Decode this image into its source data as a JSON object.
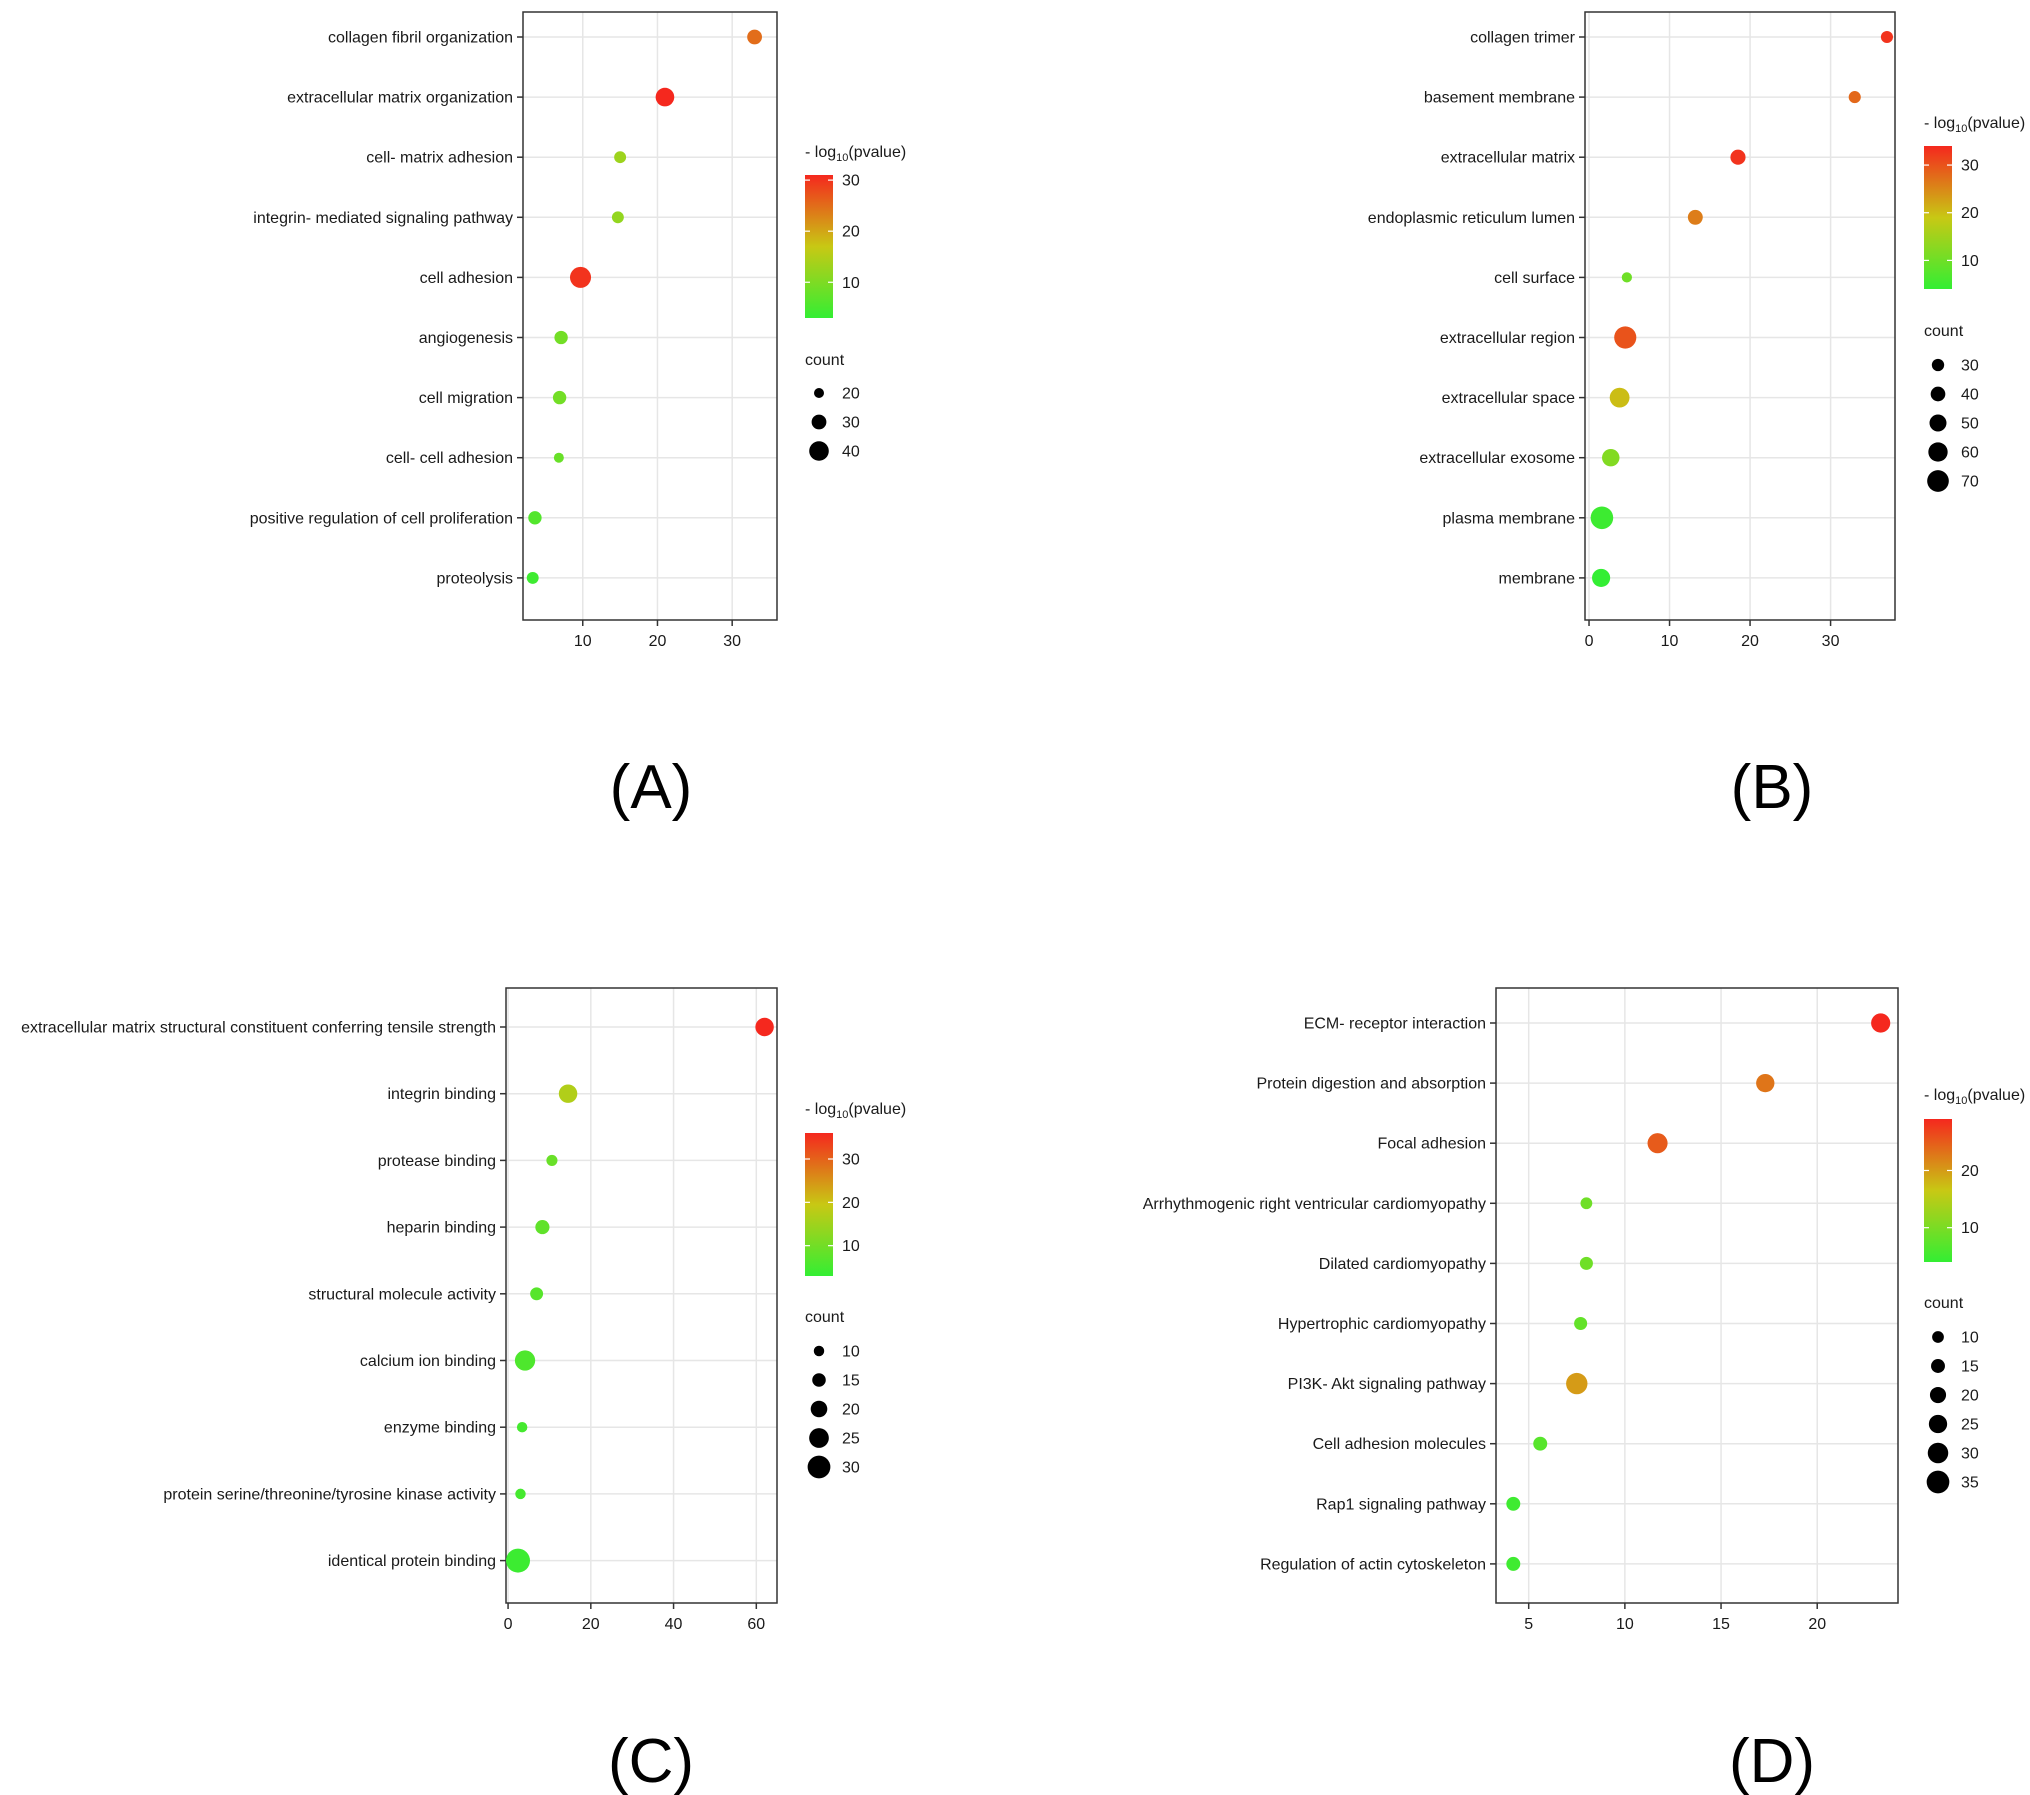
{
  "figure": {
    "legend_color_title_prefix": "- log",
    "legend_color_title_sub": "10",
    "legend_color_title_suffix": "(pvalue)",
    "legend_size_title": "count",
    "colors": {
      "low": "#33ee33",
      "mid": "#c8c814",
      "high": "#f5281e",
      "grid": "#e6e6e6"
    }
  },
  "chart_data": [
    {
      "type": "scatter",
      "panel_label": "(A)",
      "title": "",
      "xlabel": "",
      "ylabel": "",
      "xlim": [
        2,
        36
      ],
      "xticks": [
        10,
        20,
        30
      ],
      "color_range": [
        3,
        31
      ],
      "color_ticks": [
        10,
        20,
        30
      ],
      "size_legend": [
        20,
        30,
        40
      ],
      "size_domain": [
        20,
        45
      ],
      "points": [
        {
          "term": "collagen fibril organization",
          "x": 33,
          "count": 30,
          "logp": 25
        },
        {
          "term": "extracellular matrix organization",
          "x": 21,
          "count": 38,
          "logp": 31
        },
        {
          "term": "cell- matrix adhesion",
          "x": 15,
          "count": 24,
          "logp": 13
        },
        {
          "term": "integrin- mediated signaling pathway",
          "x": 14.7,
          "count": 24,
          "logp": 12
        },
        {
          "term": "cell adhesion",
          "x": 9.7,
          "count": 43,
          "logp": 30
        },
        {
          "term": "angiogenesis",
          "x": 7.1,
          "count": 27,
          "logp": 9
        },
        {
          "term": "cell migration",
          "x": 6.9,
          "count": 27,
          "logp": 9
        },
        {
          "term": "cell- cell adhesion",
          "x": 6.8,
          "count": 19,
          "logp": 8
        },
        {
          "term": "positive regulation of cell proliferation",
          "x": 3.6,
          "count": 27,
          "logp": 6
        },
        {
          "term": "proteolysis",
          "x": 3.3,
          "count": 24,
          "logp": 4
        }
      ]
    },
    {
      "type": "scatter",
      "panel_label": "(B)",
      "title": "",
      "xlabel": "",
      "ylabel": "",
      "xlim": [
        -0.5,
        38
      ],
      "xticks": [
        0,
        10,
        20,
        30
      ],
      "color_range": [
        4,
        34
      ],
      "color_ticks": [
        10,
        20,
        30
      ],
      "size_legend": [
        30,
        40,
        50,
        60,
        70
      ],
      "size_domain": [
        20,
        80
      ],
      "points": [
        {
          "term": "collagen trimer",
          "x": 37,
          "count": 29,
          "logp": 33
        },
        {
          "term": "basement membrane",
          "x": 33,
          "count": 29,
          "logp": 28
        },
        {
          "term": "extracellular matrix",
          "x": 18.5,
          "count": 42,
          "logp": 33
        },
        {
          "term": "endoplasmic reticulum lumen",
          "x": 13.2,
          "count": 41,
          "logp": 26
        },
        {
          "term": "cell surface",
          "x": 4.7,
          "count": 21,
          "logp": 10
        },
        {
          "term": "extracellular region",
          "x": 4.5,
          "count": 72,
          "logp": 30
        },
        {
          "term": "extracellular space",
          "x": 3.8,
          "count": 62,
          "logp": 20
        },
        {
          "term": "extracellular exosome",
          "x": 2.7,
          "count": 52,
          "logp": 12
        },
        {
          "term": "plasma membrane",
          "x": 1.6,
          "count": 74,
          "logp": 5
        },
        {
          "term": "membrane",
          "x": 1.5,
          "count": 55,
          "logp": 4
        }
      ]
    },
    {
      "type": "scatter",
      "panel_label": "(C)",
      "title": "",
      "xlabel": "",
      "ylabel": "",
      "xlim": [
        -0.5,
        65
      ],
      "xticks": [
        0,
        20,
        40,
        60
      ],
      "color_range": [
        3,
        36
      ],
      "color_ticks": [
        10,
        20,
        30
      ],
      "size_legend": [
        10,
        15,
        20,
        25,
        30
      ],
      "size_domain": [
        6,
        32
      ],
      "points": [
        {
          "term": "extracellular matrix structural constituent conferring tensile strength",
          "x": 62,
          "count": 23,
          "logp": 36
        },
        {
          "term": "integrin binding",
          "x": 14.5,
          "count": 23,
          "logp": 17
        },
        {
          "term": "protease binding",
          "x": 10.6,
          "count": 11,
          "logp": 9
        },
        {
          "term": "heparin binding",
          "x": 8.3,
          "count": 16,
          "logp": 8
        },
        {
          "term": "structural molecule activity",
          "x": 6.9,
          "count": 14,
          "logp": 7
        },
        {
          "term": "calcium ion binding",
          "x": 4.1,
          "count": 26,
          "logp": 6
        },
        {
          "term": "enzyme binding",
          "x": 3.4,
          "count": 10,
          "logp": 5
        },
        {
          "term": "protein serine/threonine/tyrosine kinase activity",
          "x": 3,
          "count": 10,
          "logp": 5
        },
        {
          "term": "identical protein binding",
          "x": 2.4,
          "count": 32,
          "logp": 4
        }
      ]
    },
    {
      "type": "scatter",
      "panel_label": "(D)",
      "title": "",
      "xlabel": "",
      "ylabel": "",
      "xlim": [
        3.3,
        24.2
      ],
      "xticks": [
        5,
        10,
        15,
        20
      ],
      "color_range": [
        4,
        29
      ],
      "color_ticks": [
        10,
        20
      ],
      "size_legend": [
        10,
        15,
        20,
        25,
        30,
        35
      ],
      "size_domain": [
        6,
        38
      ],
      "points": [
        {
          "term": "ECM- receptor interaction",
          "x": 23.3,
          "count": 27,
          "logp": 29
        },
        {
          "term": "Protein digestion and absorption",
          "x": 17.3,
          "count": 25,
          "logp": 23
        },
        {
          "term": "Focal adhesion",
          "x": 11.7,
          "count": 29,
          "logp": 25
        },
        {
          "term": "Arrhythmogenic right ventricular cardiomyopathy",
          "x": 8,
          "count": 10,
          "logp": 9
        },
        {
          "term": "Dilated cardiomyopathy",
          "x": 8,
          "count": 13,
          "logp": 9
        },
        {
          "term": "Hypertrophic cardiomyopathy",
          "x": 7.7,
          "count": 13,
          "logp": 8
        },
        {
          "term": "PI3K- Akt signaling pathway",
          "x": 7.5,
          "count": 32,
          "logp": 20
        },
        {
          "term": "Cell adhesion molecules",
          "x": 5.6,
          "count": 15,
          "logp": 7
        },
        {
          "term": "Rap1 signaling pathway",
          "x": 4.2,
          "count": 15,
          "logp": 5
        },
        {
          "term": "Regulation of actin cytoskeleton",
          "x": 4.2,
          "count": 15,
          "logp": 5
        }
      ]
    }
  ]
}
